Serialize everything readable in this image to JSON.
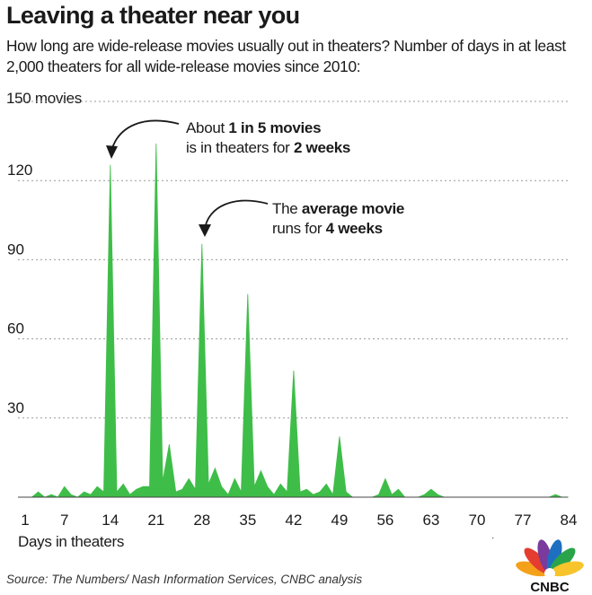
{
  "header": {
    "title": "Leaving a theater near you",
    "subtitle": "How long are wide-release movies usually out in theaters? Number of days in at least 2,000 theaters for all wide-release movies since 2010:"
  },
  "annotations": {
    "a1_pre": "About ",
    "a1_bold1": "1 in 5 movies",
    "a1_mid": "is in theaters for ",
    "a1_bold2": "2 weeks",
    "a2_pre": "The ",
    "a2_bold1": "average movie",
    "a2_mid": "runs for ",
    "a2_bold2": "4 weeks"
  },
  "footer": {
    "source": "Source: The Numbers/ Nash Information Services, CNBC analysis",
    "logo_text": "CNBC"
  },
  "colors": {
    "fill": "#3fbd49",
    "grid": "#999999",
    "text": "#1a1a1a"
  },
  "chart_data": {
    "type": "area",
    "xlabel": "Days in theaters",
    "ylabel": "",
    "y_top_label": "150 movies",
    "xlim": [
      1,
      84
    ],
    "ylim": [
      0,
      150
    ],
    "x_ticks": [
      1,
      7,
      14,
      21,
      28,
      35,
      42,
      49,
      56,
      63,
      70,
      77,
      84
    ],
    "x_tick_labels": [
      "1",
      "7",
      "14",
      "21",
      "28",
      "35",
      "42",
      "49",
      "56",
      "63",
      "70",
      "77",
      "84"
    ],
    "y_ticks": [
      30,
      60,
      90,
      120
    ],
    "y_tick_labels": [
      "30",
      "60",
      "90",
      "120"
    ],
    "grid": true,
    "x": [
      1,
      2,
      3,
      4,
      5,
      6,
      7,
      8,
      9,
      10,
      11,
      12,
      13,
      14,
      15,
      16,
      17,
      18,
      19,
      20,
      21,
      22,
      23,
      24,
      25,
      26,
      27,
      28,
      29,
      30,
      31,
      32,
      33,
      34,
      35,
      36,
      37,
      38,
      39,
      40,
      41,
      42,
      43,
      44,
      45,
      46,
      47,
      48,
      49,
      50,
      51,
      52,
      53,
      54,
      55,
      56,
      57,
      58,
      59,
      60,
      61,
      62,
      63,
      64,
      65,
      66,
      67,
      68,
      69,
      70,
      71,
      72,
      73,
      74,
      75,
      76,
      77,
      78,
      79,
      80,
      81,
      82,
      83,
      84
    ],
    "values": [
      0,
      0,
      2,
      0,
      1,
      0,
      4,
      1,
      0,
      2,
      1,
      4,
      2,
      126,
      2,
      5,
      1,
      3,
      4,
      4,
      134,
      6,
      20,
      2,
      3,
      7,
      3,
      96,
      5,
      11,
      4,
      1,
      7,
      2,
      77,
      4,
      10,
      4,
      1,
      5,
      2,
      48,
      2,
      3,
      1,
      2,
      5,
      1,
      23,
      2,
      0,
      0,
      0,
      0,
      1,
      7,
      1,
      3,
      0,
      0,
      0,
      1,
      3,
      1,
      0,
      0,
      0,
      0,
      0,
      0,
      0,
      0,
      0,
      0,
      0,
      0,
      0,
      0,
      0,
      0,
      0,
      1,
      0,
      0
    ]
  }
}
